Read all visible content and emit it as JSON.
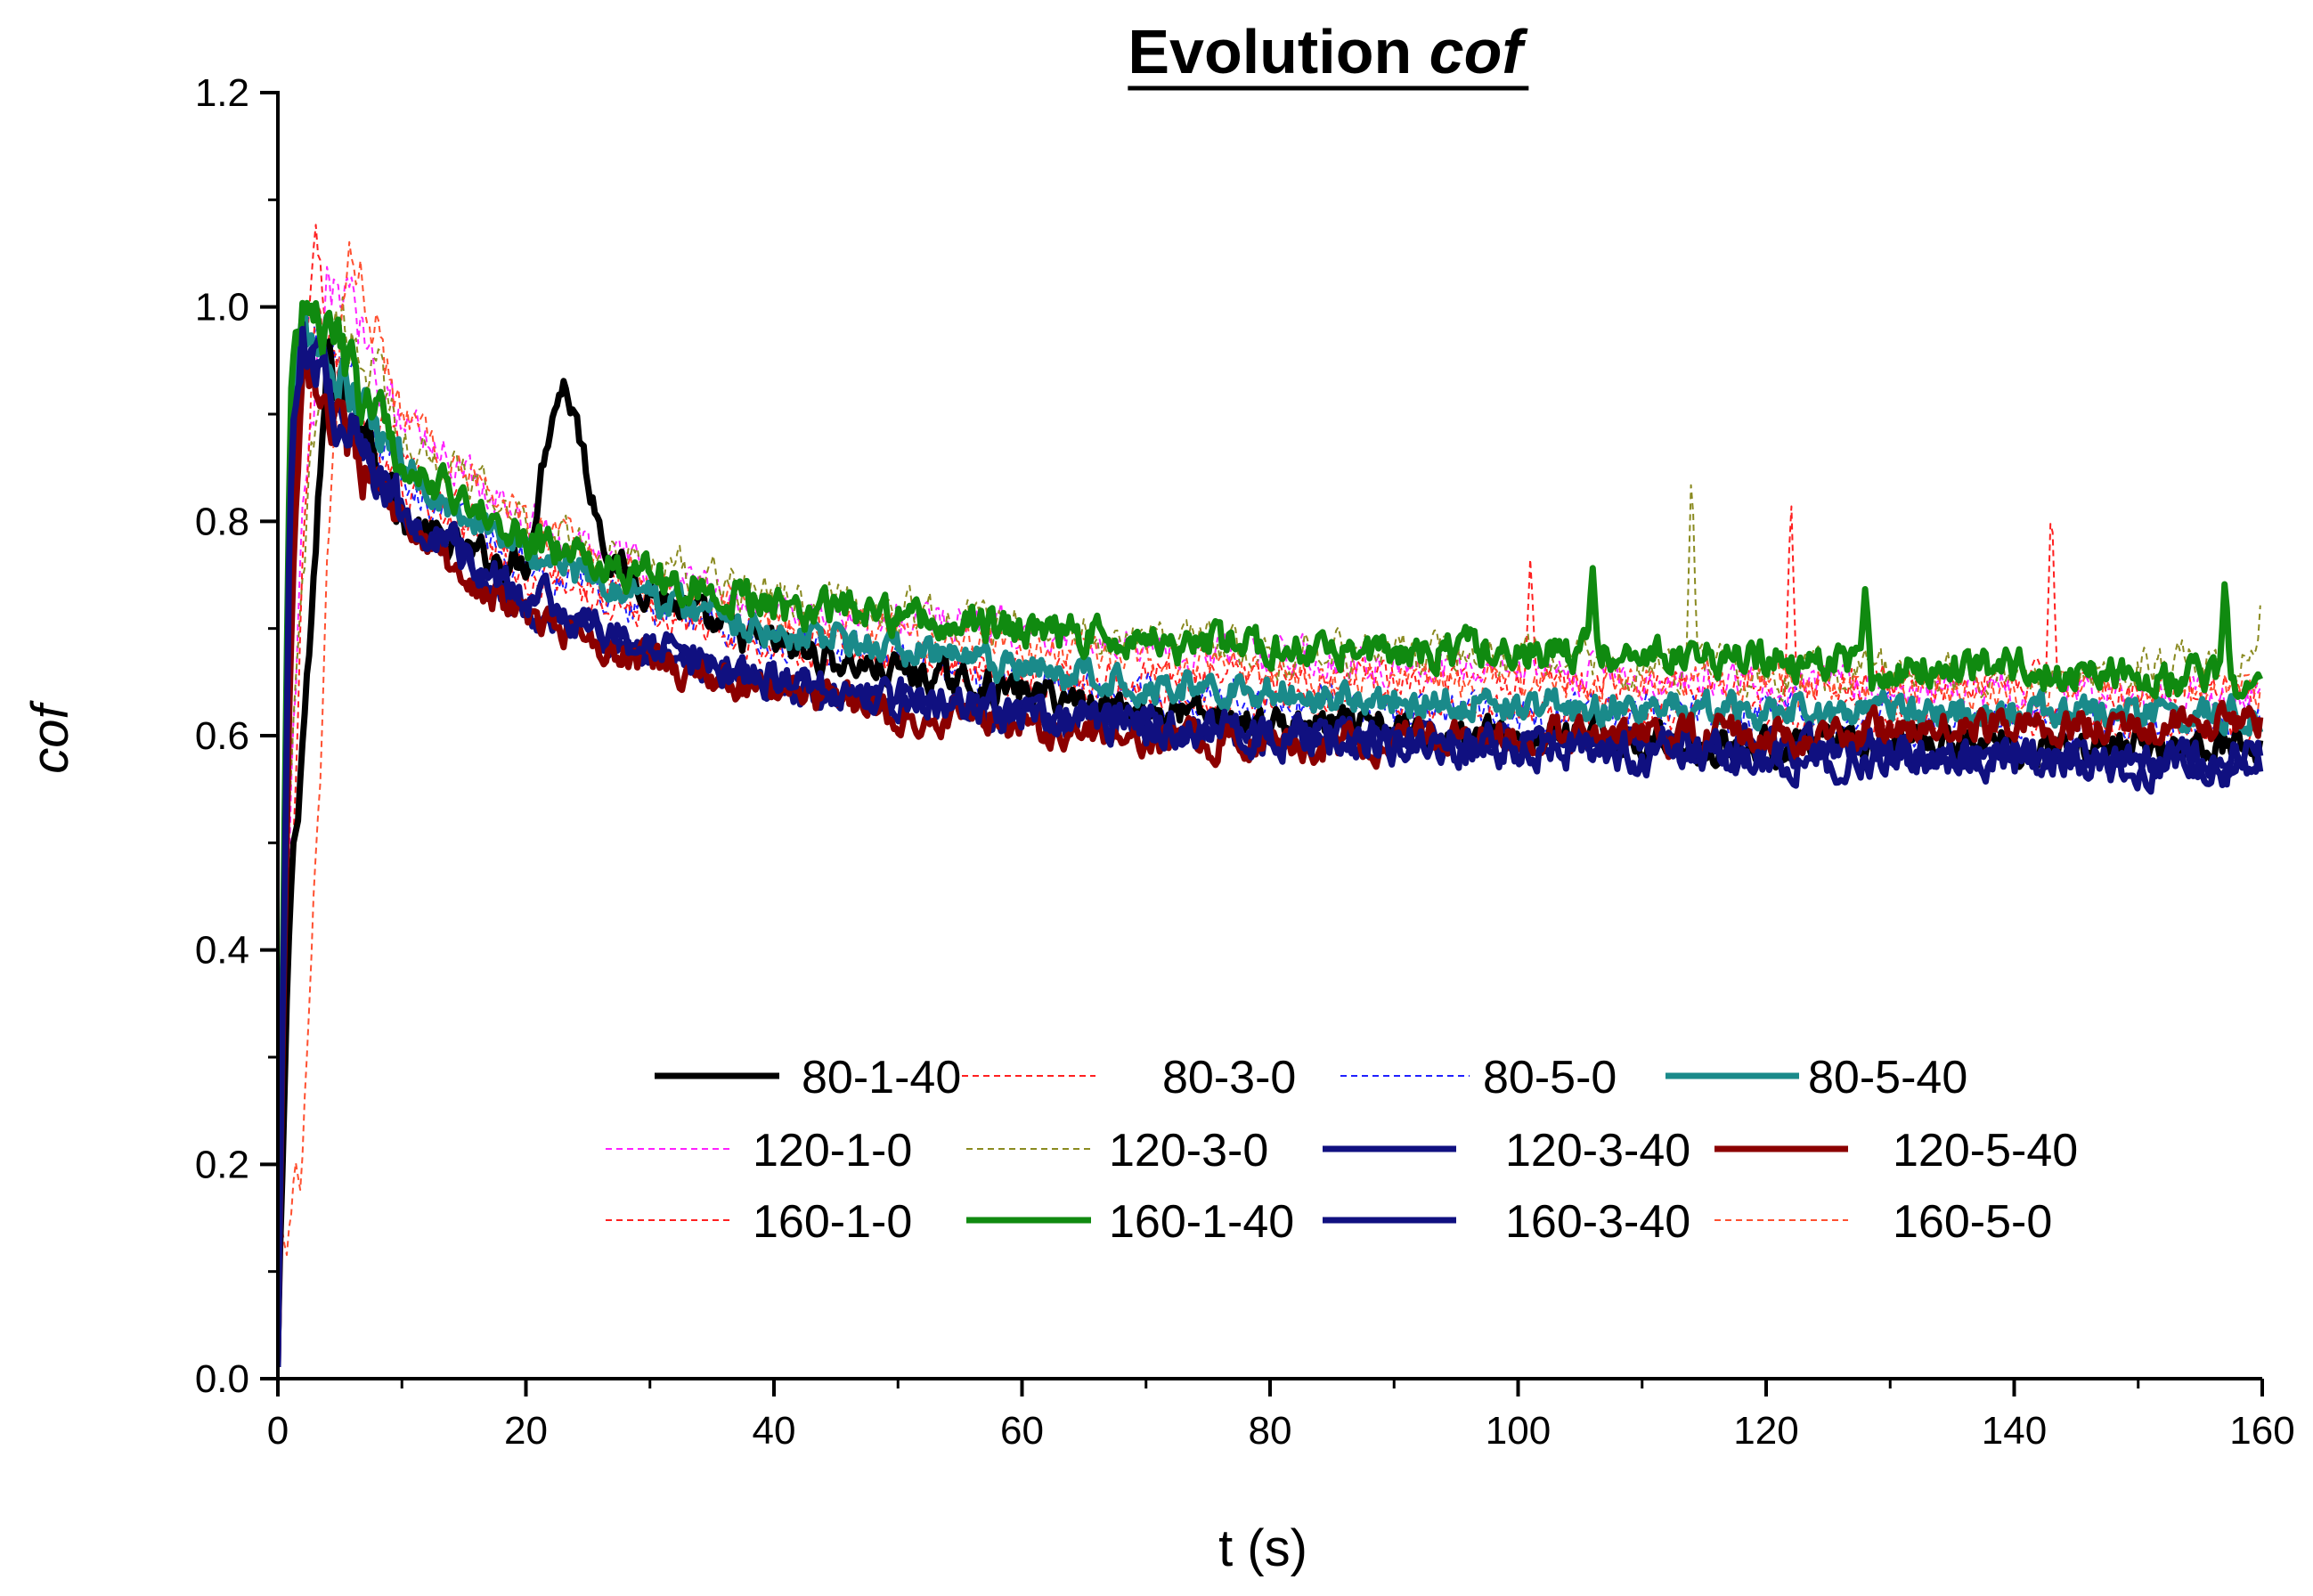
{
  "chart_data": {
    "type": "line",
    "title_plain": "Evolution ",
    "title_italic": "cof",
    "xlabel": "t (s)",
    "ylabel": "cof",
    "xlim": [
      0,
      160
    ],
    "ylim": [
      0,
      1.2
    ],
    "xticks": [
      0,
      20,
      40,
      60,
      80,
      100,
      120,
      140,
      160
    ],
    "xtick_labels": [
      "0",
      "20",
      "40",
      "60",
      "80",
      "100",
      "120",
      "140",
      "160"
    ],
    "yticks": [
      0.0,
      0.2,
      0.4,
      0.6,
      0.8,
      1.0,
      1.2
    ],
    "ytick_labels": [
      "0.0",
      "0.2",
      "0.4",
      "0.6",
      "0.8",
      "1.0",
      "1.2"
    ],
    "legend_position": "lower-right inside plot, 3 rows x 4 columns",
    "series": [
      {
        "name": "80-1-40",
        "color": "#000000",
        "style": "solid",
        "width": 7,
        "points": [
          [
            0,
            0.02
          ],
          [
            1,
            0.45
          ],
          [
            2,
            0.6
          ],
          [
            3,
            0.75
          ],
          [
            4,
            0.95
          ],
          [
            5,
            0.92
          ],
          [
            7,
            0.9
          ],
          [
            10,
            0.8
          ],
          [
            15,
            0.77
          ],
          [
            20,
            0.76
          ],
          [
            22,
            0.9
          ],
          [
            23,
            0.93
          ],
          [
            24,
            0.9
          ],
          [
            25,
            0.84
          ],
          [
            27,
            0.76
          ],
          [
            35,
            0.7
          ],
          [
            45,
            0.67
          ],
          [
            60,
            0.64
          ],
          [
            80,
            0.61
          ],
          [
            100,
            0.6
          ],
          [
            120,
            0.59
          ],
          [
            140,
            0.59
          ],
          [
            160,
            0.59
          ]
        ],
        "noise": 0.018
      },
      {
        "name": "80-3-0",
        "color": "#ff2020",
        "style": "dashed",
        "width": 2,
        "points": [
          [
            0,
            0.1
          ],
          [
            1,
            0.6
          ],
          [
            2,
            0.95
          ],
          [
            3,
            1.06
          ],
          [
            4,
            0.97
          ],
          [
            6,
            0.92
          ],
          [
            10,
            0.85
          ],
          [
            20,
            0.76
          ],
          [
            30,
            0.73
          ],
          [
            40,
            0.7
          ],
          [
            60,
            0.66
          ],
          [
            80,
            0.65
          ],
          [
            100,
            0.65
          ],
          [
            120,
            0.65
          ],
          [
            140,
            0.65
          ],
          [
            160,
            0.64
          ]
        ],
        "noise": 0.02,
        "spikes": [
          [
            101,
            0.77
          ],
          [
            122,
            0.83
          ],
          [
            143,
            0.83
          ]
        ]
      },
      {
        "name": "80-5-0",
        "color": "#2020ff",
        "style": "dashed",
        "width": 2,
        "points": [
          [
            0,
            0.03
          ],
          [
            1,
            0.75
          ],
          [
            2,
            1.0
          ],
          [
            3,
            0.98
          ],
          [
            5,
            0.94
          ],
          [
            10,
            0.84
          ],
          [
            20,
            0.76
          ],
          [
            30,
            0.72
          ],
          [
            40,
            0.69
          ],
          [
            60,
            0.65
          ],
          [
            80,
            0.63
          ],
          [
            100,
            0.62
          ],
          [
            120,
            0.62
          ],
          [
            140,
            0.61
          ],
          [
            160,
            0.61
          ]
        ],
        "noise": 0.02
      },
      {
        "name": "80-5-40",
        "color": "#1a8a8a",
        "style": "solid",
        "width": 7,
        "points": [
          [
            0,
            0.04
          ],
          [
            1,
            0.85
          ],
          [
            2,
            0.98
          ],
          [
            3,
            0.96
          ],
          [
            5,
            0.93
          ],
          [
            10,
            0.85
          ],
          [
            20,
            0.77
          ],
          [
            30,
            0.73
          ],
          [
            40,
            0.7
          ],
          [
            60,
            0.66
          ],
          [
            80,
            0.64
          ],
          [
            100,
            0.63
          ],
          [
            120,
            0.62
          ],
          [
            140,
            0.62
          ],
          [
            160,
            0.62
          ]
        ],
        "noise": 0.018
      },
      {
        "name": "120-1-0",
        "color": "#ff20ff",
        "style": "dashed",
        "width": 2,
        "points": [
          [
            0,
            0.05
          ],
          [
            1,
            0.5
          ],
          [
            2,
            0.8
          ],
          [
            4,
            1.02
          ],
          [
            6,
            1.0
          ],
          [
            10,
            0.9
          ],
          [
            20,
            0.8
          ],
          [
            30,
            0.75
          ],
          [
            40,
            0.72
          ],
          [
            60,
            0.7
          ],
          [
            80,
            0.67
          ],
          [
            100,
            0.66
          ],
          [
            120,
            0.65
          ],
          [
            140,
            0.64
          ],
          [
            160,
            0.63
          ]
        ],
        "noise": 0.022
      },
      {
        "name": "120-3-0",
        "color": "#8a8a20",
        "style": "dashed",
        "width": 2,
        "points": [
          [
            0,
            0.04
          ],
          [
            1,
            0.55
          ],
          [
            3,
            0.9
          ],
          [
            5,
            1.0
          ],
          [
            7,
            0.95
          ],
          [
            10,
            0.88
          ],
          [
            20,
            0.8
          ],
          [
            30,
            0.76
          ],
          [
            40,
            0.73
          ],
          [
            60,
            0.7
          ],
          [
            80,
            0.68
          ],
          [
            100,
            0.67
          ],
          [
            120,
            0.66
          ],
          [
            140,
            0.66
          ],
          [
            160,
            0.67
          ]
        ],
        "noise": 0.022,
        "spikes": [
          [
            114,
            0.86
          ],
          [
            157,
            0.74
          ],
          [
            160,
            0.75
          ]
        ]
      },
      {
        "name": "120-3-40",
        "color": "#101080",
        "style": "solid",
        "width": 7,
        "points": [
          [
            0,
            0.03
          ],
          [
            1,
            0.8
          ],
          [
            2,
            0.97
          ],
          [
            3,
            0.95
          ],
          [
            5,
            0.9
          ],
          [
            10,
            0.8
          ],
          [
            20,
            0.72
          ],
          [
            30,
            0.68
          ],
          [
            40,
            0.65
          ],
          [
            60,
            0.62
          ],
          [
            80,
            0.6
          ],
          [
            100,
            0.59
          ],
          [
            120,
            0.59
          ],
          [
            140,
            0.58
          ],
          [
            160,
            0.58
          ]
        ],
        "noise": 0.018
      },
      {
        "name": "120-5-40",
        "color": "#8b0000",
        "style": "solid",
        "width": 7,
        "points": [
          [
            0,
            0.03
          ],
          [
            1,
            0.7
          ],
          [
            2,
            0.92
          ],
          [
            3,
            0.93
          ],
          [
            5,
            0.88
          ],
          [
            10,
            0.79
          ],
          [
            20,
            0.71
          ],
          [
            30,
            0.67
          ],
          [
            40,
            0.64
          ],
          [
            60,
            0.61
          ],
          [
            80,
            0.59
          ],
          [
            100,
            0.6
          ],
          [
            120,
            0.6
          ],
          [
            140,
            0.61
          ],
          [
            160,
            0.61
          ]
        ],
        "noise": 0.018
      },
      {
        "name": "160-1-0",
        "color": "#ff2020",
        "style": "dashed",
        "width": 2,
        "points": [
          [
            0,
            0.15
          ],
          [
            1,
            0.4
          ],
          [
            2,
            0.75
          ],
          [
            3,
            1.0
          ],
          [
            4,
            0.95
          ],
          [
            6,
            0.9
          ],
          [
            10,
            0.83
          ],
          [
            20,
            0.75
          ],
          [
            30,
            0.71
          ],
          [
            40,
            0.68
          ],
          [
            60,
            0.65
          ],
          [
            80,
            0.63
          ],
          [
            100,
            0.62
          ],
          [
            120,
            0.62
          ],
          [
            140,
            0.61
          ],
          [
            160,
            0.61
          ]
        ],
        "noise": 0.016
      },
      {
        "name": "160-1-40",
        "color": "#108a10",
        "style": "solid",
        "width": 7,
        "points": [
          [
            0,
            0.05
          ],
          [
            1,
            0.9
          ],
          [
            2,
            1.0
          ],
          [
            4,
            0.98
          ],
          [
            6,
            0.93
          ],
          [
            10,
            0.86
          ],
          [
            20,
            0.78
          ],
          [
            30,
            0.75
          ],
          [
            40,
            0.72
          ],
          [
            60,
            0.7
          ],
          [
            80,
            0.68
          ],
          [
            100,
            0.68
          ],
          [
            120,
            0.67
          ],
          [
            140,
            0.66
          ],
          [
            160,
            0.65
          ]
        ],
        "noise": 0.02,
        "spikes": [
          [
            106,
            0.76
          ],
          [
            128,
            0.74
          ],
          [
            157,
            0.75
          ]
        ]
      },
      {
        "name": "160-3-40",
        "color": "#101080",
        "style": "solid",
        "width": 7,
        "points": [
          [
            0,
            0.02
          ],
          [
            1,
            0.85
          ],
          [
            2,
            0.98
          ],
          [
            3,
            0.95
          ],
          [
            5,
            0.9
          ],
          [
            10,
            0.81
          ],
          [
            20,
            0.73
          ],
          [
            30,
            0.68
          ],
          [
            40,
            0.65
          ],
          [
            60,
            0.62
          ],
          [
            80,
            0.6
          ],
          [
            100,
            0.59
          ],
          [
            120,
            0.58
          ],
          [
            140,
            0.58
          ],
          [
            160,
            0.57
          ]
        ],
        "noise": 0.02
      },
      {
        "name": "160-5-0",
        "color": "#ff5030",
        "style": "dashed",
        "width": 2,
        "points": [
          [
            0,
            0.13
          ],
          [
            1,
            0.15
          ],
          [
            2,
            0.2
          ],
          [
            3,
            0.45
          ],
          [
            4,
            0.75
          ],
          [
            5,
            0.95
          ],
          [
            6,
            1.06
          ],
          [
            8,
            0.98
          ],
          [
            10,
            0.9
          ],
          [
            20,
            0.8
          ],
          [
            30,
            0.74
          ],
          [
            40,
            0.71
          ],
          [
            60,
            0.68
          ],
          [
            80,
            0.66
          ],
          [
            100,
            0.65
          ],
          [
            120,
            0.65
          ],
          [
            140,
            0.64
          ],
          [
            160,
            0.64
          ]
        ],
        "noise": 0.02
      }
    ]
  }
}
